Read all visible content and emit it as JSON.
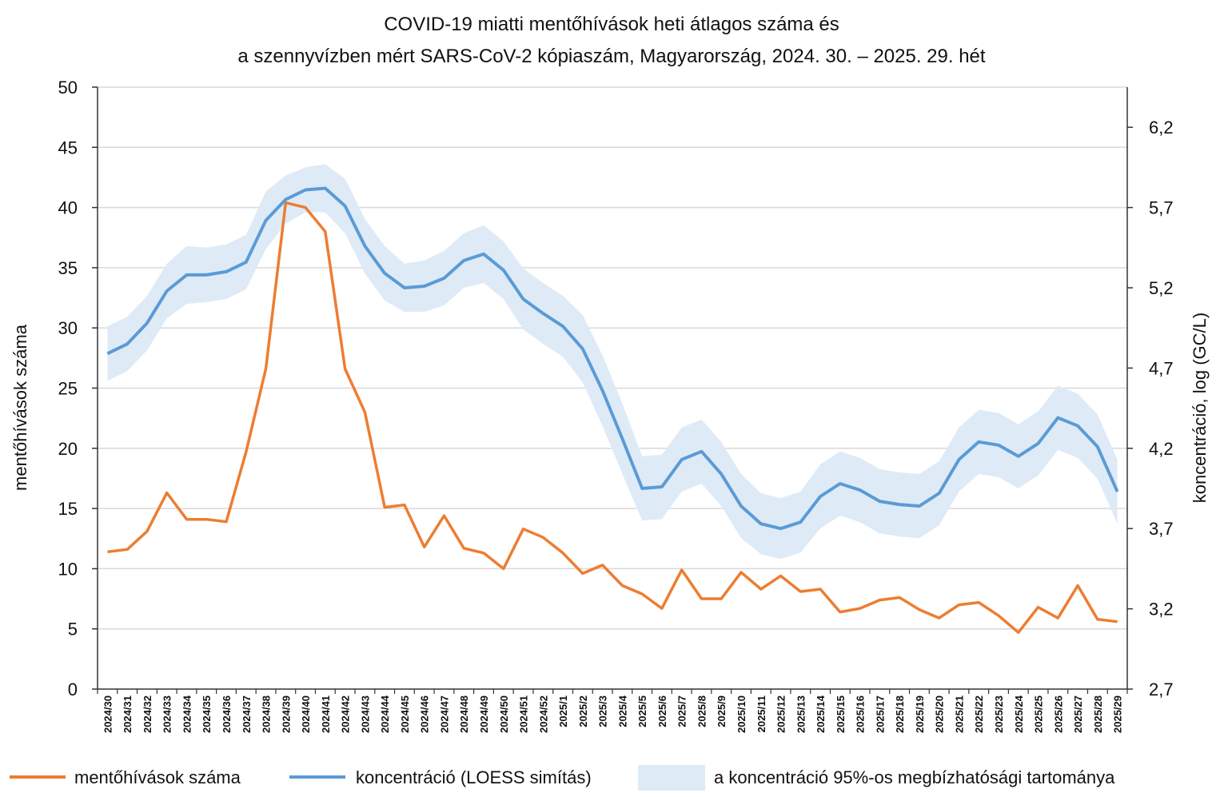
{
  "chart_data": {
    "type": "line",
    "title_line1": "COVID-19 miatti mentőhívások heti átlagos száma és",
    "title_line2": "a szennyvízben mért SARS-CoV-2 kópiaszám, Magyarország, 2024. 30. – 2025. 29. hét",
    "ylabel_left": "mentőhívások száma",
    "ylabel_right": "koncentráció, log (GC/L)",
    "ylim_left": [
      0,
      50
    ],
    "yticks_left": [
      "0",
      "5",
      "10",
      "15",
      "20",
      "25",
      "30",
      "35",
      "40",
      "45",
      "50"
    ],
    "ylim_right": [
      2.7,
      6.45
    ],
    "yticks_right": [
      "2,7",
      "3,2",
      "3,7",
      "4,2",
      "4,7",
      "5,2",
      "5,7",
      "6,2"
    ],
    "categories": [
      "2024/30",
      "2024/31",
      "2024/32",
      "2024/33",
      "2024/34",
      "2024/35",
      "2024/36",
      "2024/37",
      "2024/38",
      "2024/39",
      "2024/40",
      "2024/41",
      "2024/42",
      "2024/43",
      "2024/44",
      "2024/45",
      "2024/46",
      "2024/47",
      "2024/48",
      "2024/49",
      "2024/50",
      "2024/51",
      "2024/52",
      "2025/1",
      "2025/2",
      "2025/3",
      "2025/4",
      "2025/5",
      "2025/6",
      "2025/7",
      "2025/8",
      "2025/9",
      "2025/10",
      "2025/11",
      "2025/12",
      "2025/13",
      "2025/14",
      "2025/15",
      "2025/16",
      "2025/17",
      "2025/18",
      "2025/19",
      "2025/20",
      "2025/21",
      "2025/22",
      "2025/23",
      "2025/24",
      "2025/25",
      "2025/26",
      "2025/27",
      "2025/28",
      "2025/29"
    ],
    "series": [
      {
        "name": "mentőhívások száma",
        "axis": "left",
        "color": "#ED7D31",
        "values": [
          11.4,
          11.6,
          13.1,
          16.3,
          14.1,
          14.1,
          13.9,
          19.7,
          26.6,
          40.4,
          40.0,
          38.0,
          26.6,
          23.0,
          15.1,
          15.3,
          11.8,
          14.4,
          11.7,
          11.3,
          10.0,
          13.3,
          12.6,
          11.3,
          9.6,
          10.3,
          8.6,
          7.9,
          6.7,
          9.9,
          7.5,
          7.5,
          9.7,
          8.3,
          9.4,
          8.1,
          8.3,
          6.4,
          6.7,
          7.4,
          7.6,
          6.6,
          5.9,
          7.0,
          7.2,
          6.1,
          4.7,
          6.8,
          5.9,
          8.6,
          5.8,
          5.6
        ]
      },
      {
        "name": "koncentráció (LOESS simítás)",
        "axis": "right",
        "color": "#5B9BD5",
        "values": [
          4.79,
          4.85,
          4.98,
          5.18,
          5.28,
          5.28,
          5.3,
          5.36,
          5.62,
          5.75,
          5.81,
          5.82,
          5.71,
          5.46,
          5.29,
          5.2,
          5.21,
          5.26,
          5.37,
          5.41,
          5.31,
          5.13,
          5.04,
          4.96,
          4.82,
          4.56,
          4.26,
          3.95,
          3.96,
          4.13,
          4.18,
          4.04,
          3.84,
          3.73,
          3.7,
          3.74,
          3.9,
          3.98,
          3.94,
          3.87,
          3.85,
          3.84,
          3.92,
          4.13,
          4.24,
          4.22,
          4.15,
          4.23,
          4.39,
          4.34,
          4.21,
          3.93
        ]
      },
      {
        "name": "a koncentráció 95%-os megbízhatósági tartománya",
        "axis": "right",
        "color": "#DEEBF7",
        "lower": [
          4.62,
          4.68,
          4.81,
          5.01,
          5.1,
          5.11,
          5.13,
          5.19,
          5.44,
          5.6,
          5.67,
          5.67,
          5.54,
          5.29,
          5.12,
          5.05,
          5.05,
          5.09,
          5.2,
          5.23,
          5.13,
          4.94,
          4.85,
          4.77,
          4.61,
          4.34,
          4.04,
          3.75,
          3.76,
          3.93,
          3.98,
          3.84,
          3.64,
          3.54,
          3.51,
          3.55,
          3.7,
          3.78,
          3.74,
          3.67,
          3.65,
          3.64,
          3.72,
          3.93,
          4.04,
          4.02,
          3.95,
          4.03,
          4.19,
          4.14,
          4.01,
          3.73
        ],
        "upper": [
          4.96,
          5.02,
          5.15,
          5.35,
          5.46,
          5.45,
          5.47,
          5.53,
          5.8,
          5.9,
          5.95,
          5.97,
          5.88,
          5.63,
          5.46,
          5.35,
          5.37,
          5.43,
          5.54,
          5.59,
          5.49,
          5.32,
          5.23,
          5.15,
          5.03,
          4.78,
          4.48,
          4.15,
          4.16,
          4.33,
          4.38,
          4.24,
          4.04,
          3.92,
          3.89,
          3.93,
          4.1,
          4.18,
          4.14,
          4.07,
          4.05,
          4.04,
          4.12,
          4.33,
          4.44,
          4.42,
          4.35,
          4.43,
          4.59,
          4.54,
          4.41,
          4.13
        ]
      }
    ],
    "legend": [
      "mentőhívások száma",
      "koncentráció (LOESS simítás)",
      "a koncentráció 95%-os megbízhatósági tartománya"
    ],
    "legend_position": "bottom",
    "grid": true
  }
}
